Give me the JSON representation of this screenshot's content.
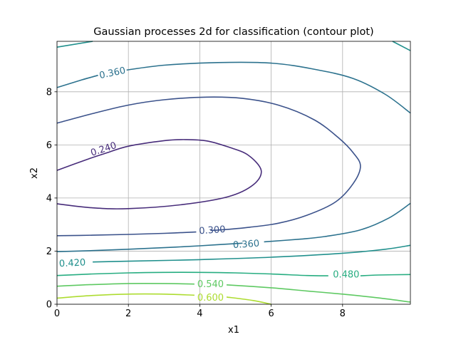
{
  "chart_data": {
    "type": "contour",
    "title": "Gaussian processes 2d for classification (contour plot)",
    "xlabel": "x1",
    "ylabel": "x2",
    "xlim": [
      0,
      9.9
    ],
    "ylim": [
      0,
      9.9
    ],
    "xticks": [
      0,
      2,
      4,
      6,
      8
    ],
    "yticks": [
      0,
      2,
      4,
      6,
      8
    ],
    "grid": true,
    "colormap": "viridis",
    "contours": [
      {
        "level": 0.24,
        "label": "0.240",
        "color": "#472c7a",
        "paths": [
          [
            [
              0,
              5.04
            ],
            [
              0.9,
              5.48
            ],
            [
              1.35,
              5.68
            ],
            [
              2.0,
              5.95
            ],
            [
              3.0,
              6.16
            ],
            [
              3.6,
              6.2
            ],
            [
              4.2,
              6.15
            ],
            [
              4.8,
              5.92
            ],
            [
              5.35,
              5.62
            ],
            [
              5.72,
              5.04
            ],
            [
              5.5,
              4.5
            ],
            [
              4.8,
              4.05
            ],
            [
              3.5,
              3.75
            ],
            [
              2.0,
              3.6
            ],
            [
              1.0,
              3.63
            ],
            [
              0,
              3.78
            ]
          ]
        ],
        "labels": [
          {
            "x": 1.3,
            "y": 5.85,
            "rot": -18
          }
        ]
      },
      {
        "level": 0.3,
        "label": "0.300",
        "color": "#3b528b",
        "paths": [
          [
            [
              0,
              6.82
            ],
            [
              1.0,
              7.18
            ],
            [
              2.0,
              7.5
            ],
            [
              3.0,
              7.7
            ],
            [
              4.2,
              7.8
            ],
            [
              5.2,
              7.75
            ],
            [
              6.2,
              7.5
            ],
            [
              7.2,
              6.95
            ],
            [
              7.9,
              6.25
            ],
            [
              8.3,
              5.7
            ],
            [
              8.5,
              5.2
            ],
            [
              8.3,
              4.55
            ],
            [
              7.8,
              3.85
            ],
            [
              7.0,
              3.35
            ],
            [
              6.2,
              3.05
            ],
            [
              5.4,
              2.9
            ],
            [
              4.6,
              2.8
            ],
            [
              4.3,
              2.78
            ]
          ],
          [
            [
              3.9,
              2.72
            ],
            [
              3.0,
              2.67
            ],
            [
              2.0,
              2.63
            ],
            [
              1.0,
              2.6
            ],
            [
              0,
              2.58
            ]
          ]
        ],
        "labels": [
          {
            "x": 4.35,
            "y": 2.8,
            "rot": -4
          }
        ]
      },
      {
        "level": 0.36,
        "label": "0.360",
        "color": "#2c728e",
        "paths": [
          [
            [
              0,
              8.16
            ],
            [
              0.7,
              8.45
            ],
            [
              1.15,
              8.62
            ]
          ],
          [
            [
              1.95,
              8.82
            ],
            [
              3.0,
              9.0
            ],
            [
              4.5,
              9.1
            ],
            [
              6.0,
              9.08
            ],
            [
              7.2,
              8.85
            ],
            [
              8.3,
              8.5
            ],
            [
              9.2,
              7.9
            ],
            [
              9.9,
              7.2
            ]
          ],
          [
            [
              9.9,
              3.8
            ],
            [
              9.3,
              3.25
            ],
            [
              8.5,
              2.8
            ],
            [
              7.5,
              2.55
            ],
            [
              6.8,
              2.45
            ],
            [
              5.8,
              2.35
            ]
          ],
          [
            [
              5.2,
              2.3
            ],
            [
              4.0,
              2.2
            ],
            [
              3.0,
              2.13
            ],
            [
              2.0,
              2.07
            ],
            [
              1.0,
              2.02
            ],
            [
              0,
              1.98
            ]
          ]
        ],
        "labels": [
          {
            "x": 1.55,
            "y": 8.72,
            "rot": -12
          },
          {
            "x": 5.3,
            "y": 2.27,
            "rot": -4
          }
        ]
      },
      {
        "level": 0.42,
        "label": "0.420",
        "color": "#21908d",
        "paths": [
          [
            [
              0,
              9.68
            ],
            [
              1.0,
              9.9
            ]
          ],
          [
            [
              9.4,
              9.9
            ],
            [
              9.9,
              9.55
            ]
          ],
          [
            [
              9.9,
              2.22
            ],
            [
              9.2,
              2.07
            ],
            [
              8.0,
              1.92
            ],
            [
              6.0,
              1.77
            ],
            [
              4.0,
              1.68
            ],
            [
              2.0,
              1.62
            ],
            [
              1.0,
              1.59
            ]
          ]
        ],
        "labels": [
          {
            "x": 0.43,
            "y": 1.56,
            "rot": -3
          }
        ]
      },
      {
        "level": 0.48,
        "label": "0.480",
        "color": "#27ad81",
        "paths": [
          [
            [
              0,
              1.08
            ],
            [
              1.0,
              1.14
            ],
            [
              2.0,
              1.18
            ],
            [
              3.0,
              1.2
            ],
            [
              4.0,
              1.2
            ],
            [
              5.0,
              1.18
            ],
            [
              6.0,
              1.14
            ],
            [
              7.0,
              1.08
            ],
            [
              7.6,
              1.07
            ]
          ],
          [
            [
              8.5,
              1.07
            ],
            [
              9.0,
              1.1
            ],
            [
              9.9,
              1.12
            ]
          ]
        ],
        "labels": [
          {
            "x": 8.1,
            "y": 1.13,
            "rot": 0
          }
        ]
      },
      {
        "level": 0.54,
        "label": "0.540",
        "color": "#5ec962",
        "paths": [
          [
            [
              0,
              0.68
            ],
            [
              1.0,
              0.74
            ],
            [
              2.0,
              0.78
            ],
            [
              3.0,
              0.78
            ],
            [
              3.85,
              0.76
            ]
          ],
          [
            [
              4.75,
              0.73
            ],
            [
              6.0,
              0.62
            ],
            [
              7.0,
              0.5
            ],
            [
              8.0,
              0.38
            ],
            [
              9.0,
              0.24
            ],
            [
              9.9,
              0.08
            ]
          ]
        ],
        "labels": [
          {
            "x": 4.3,
            "y": 0.76,
            "rot": 0
          }
        ]
      },
      {
        "level": 0.6,
        "label": "0.600",
        "color": "#addc30",
        "paths": [
          [
            [
              0,
              0.23
            ],
            [
              1.0,
              0.33
            ],
            [
              2.0,
              0.38
            ],
            [
              3.0,
              0.38
            ],
            [
              3.85,
              0.34
            ]
          ],
          [
            [
              4.75,
              0.27
            ],
            [
              5.5,
              0.14
            ],
            [
              6.0,
              0.0
            ]
          ]
        ],
        "labels": [
          {
            "x": 4.3,
            "y": 0.26,
            "rot": 0
          }
        ]
      }
    ]
  }
}
